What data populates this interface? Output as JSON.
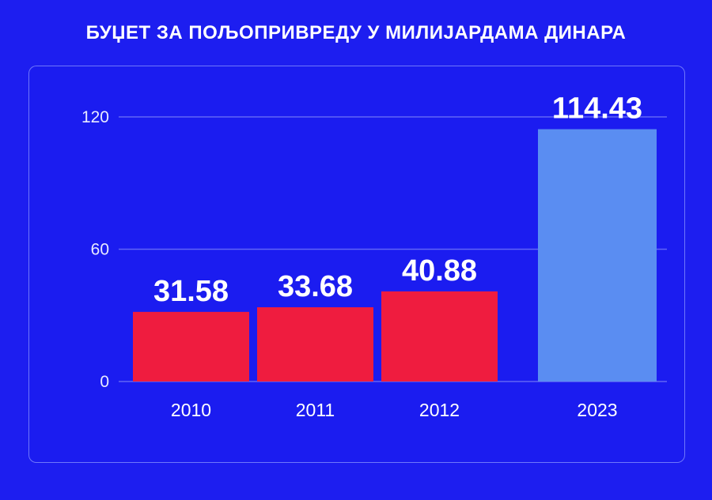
{
  "header": {
    "title": "БУЏЕТ ЗА ПОЉОПРИВРЕДУ У МИЛИЈАРДАМА ДИНАРА"
  },
  "colors": {
    "background": "#1d1ef0",
    "bar_red": "#ef1c3f",
    "bar_highlight": "#5a8df2",
    "gridline": "#6f73f7"
  },
  "chart_data": {
    "type": "bar",
    "title": "БУЏЕТ ЗА ПОЉОПРИВРЕДУ У МИЛИЈАРДАМА ДИНАРА",
    "categories": [
      "2010",
      "2011",
      "2012",
      "2023"
    ],
    "values": [
      31.58,
      33.68,
      40.88,
      114.43
    ],
    "value_labels": [
      "31.58",
      "33.68",
      "40.88",
      "114.43"
    ],
    "bar_colors": [
      "#ef1c3f",
      "#ef1c3f",
      "#ef1c3f",
      "#5a8df2"
    ],
    "yticks": [
      "0",
      "60",
      "120"
    ],
    "ylim": [
      0,
      120
    ],
    "grid": true,
    "legend": "none",
    "xlabel": "",
    "ylabel": ""
  }
}
